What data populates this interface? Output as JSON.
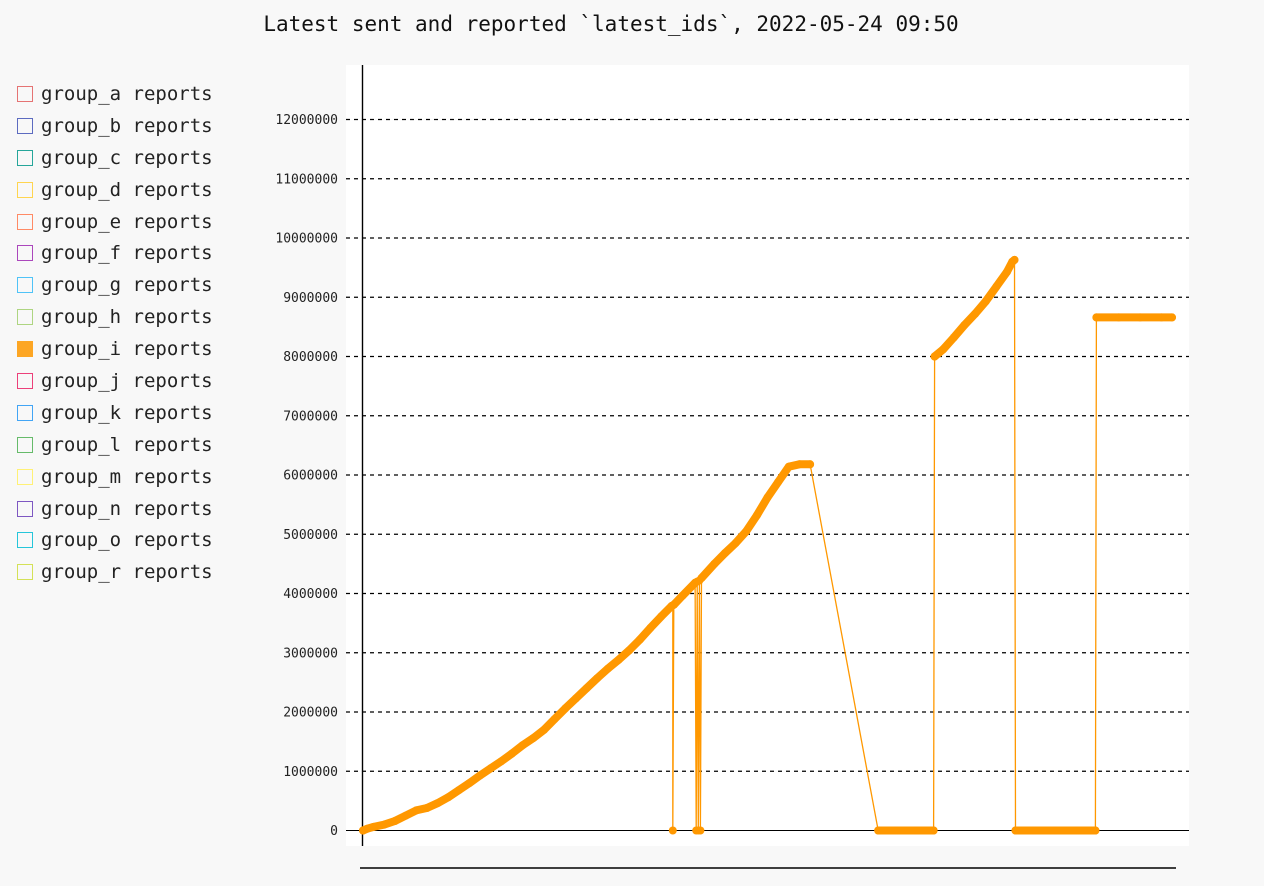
{
  "chart_data": {
    "type": "line",
    "title": "Latest sent and reported `latest_ids`, 2022-05-24 09:50",
    "xlabel": "",
    "ylabel": "",
    "ylim": [
      0,
      12900000
    ],
    "yticks": [
      0,
      1000000,
      2000000,
      3000000,
      4000000,
      5000000,
      6000000,
      7000000,
      8000000,
      9000000,
      10000000,
      11000000,
      12000000
    ],
    "grid": true,
    "legend_position": "left",
    "legend": [
      {
        "name": "group_a reports",
        "color": "#e57373",
        "active": false
      },
      {
        "name": "group_b reports",
        "color": "#5c6bc0",
        "active": false
      },
      {
        "name": "group_c reports",
        "color": "#26a69a",
        "active": false
      },
      {
        "name": "group_d reports",
        "color": "#ffd54f",
        "active": false
      },
      {
        "name": "group_e reports",
        "color": "#ff8a65",
        "active": false
      },
      {
        "name": "group_f reports",
        "color": "#ab47bc",
        "active": false
      },
      {
        "name": "group_g reports",
        "color": "#4fc3f7",
        "active": false
      },
      {
        "name": "group_h reports",
        "color": "#aed581",
        "active": false
      },
      {
        "name": "group_i reports",
        "color": "#ff9800",
        "active": true
      },
      {
        "name": "group_j reports",
        "color": "#ec407a",
        "active": false
      },
      {
        "name": "group_k reports",
        "color": "#42a5f5",
        "active": false
      },
      {
        "name": "group_l reports",
        "color": "#66bb6a",
        "active": false
      },
      {
        "name": "group_m reports",
        "color": "#fff176",
        "active": false
      },
      {
        "name": "group_n reports",
        "color": "#7e57c2",
        "active": false
      },
      {
        "name": "group_o reports",
        "color": "#26c6da",
        "active": false
      },
      {
        "name": "group_r reports",
        "color": "#d4e157",
        "active": false
      }
    ],
    "series": [
      {
        "name": "group_i reports",
        "color": "#ff9800",
        "points": [
          [
            0,
            0
          ],
          [
            4,
            30000
          ],
          [
            10,
            60000
          ],
          [
            20,
            100000
          ],
          [
            30,
            160000
          ],
          [
            40,
            250000
          ],
          [
            50,
            340000
          ],
          [
            60,
            380000
          ],
          [
            70,
            460000
          ],
          [
            80,
            560000
          ],
          [
            90,
            680000
          ],
          [
            100,
            800000
          ],
          [
            110,
            930000
          ],
          [
            120,
            1050000
          ],
          [
            130,
            1170000
          ],
          [
            140,
            1300000
          ],
          [
            150,
            1440000
          ],
          [
            160,
            1560000
          ],
          [
            170,
            1700000
          ],
          [
            180,
            1880000
          ],
          [
            190,
            2060000
          ],
          [
            200,
            2230000
          ],
          [
            210,
            2400000
          ],
          [
            220,
            2570000
          ],
          [
            230,
            2730000
          ],
          [
            240,
            2880000
          ],
          [
            250,
            3040000
          ],
          [
            260,
            3220000
          ],
          [
            270,
            3420000
          ],
          [
            280,
            3610000
          ],
          [
            290,
            3790000
          ],
          [
            291,
            3800000
          ],
          [
            291,
            0
          ],
          [
            292,
            3810000
          ],
          [
            300,
            3960000
          ],
          [
            312,
            4180000
          ],
          [
            313,
            0
          ],
          [
            314,
            4200000
          ],
          [
            315,
            0
          ],
          [
            316,
            4220000
          ],
          [
            317,
            0
          ],
          [
            318,
            4260000
          ],
          [
            330,
            4500000
          ],
          [
            340,
            4680000
          ],
          [
            350,
            4850000
          ],
          [
            360,
            5050000
          ],
          [
            370,
            5320000
          ],
          [
            380,
            5620000
          ],
          [
            390,
            5880000
          ],
          [
            400,
            6140000
          ],
          [
            410,
            6180000
          ],
          [
            420,
            6180000
          ],
          [
            484,
            0
          ],
          [
            500,
            0
          ],
          [
            520,
            0
          ],
          [
            536,
            0
          ],
          [
            537,
            8000000
          ],
          [
            545,
            8120000
          ],
          [
            555,
            8320000
          ],
          [
            565,
            8530000
          ],
          [
            575,
            8720000
          ],
          [
            585,
            8930000
          ],
          [
            595,
            9180000
          ],
          [
            605,
            9430000
          ],
          [
            610,
            9600000
          ],
          [
            612,
            9630000
          ],
          [
            613,
            0
          ],
          [
            630,
            0
          ],
          [
            650,
            0
          ],
          [
            670,
            0
          ],
          [
            688,
            0
          ],
          [
            689,
            8660000
          ],
          [
            710,
            8660000
          ],
          [
            730,
            8660000
          ],
          [
            750,
            8660000
          ],
          [
            760,
            8660000
          ]
        ]
      }
    ]
  }
}
